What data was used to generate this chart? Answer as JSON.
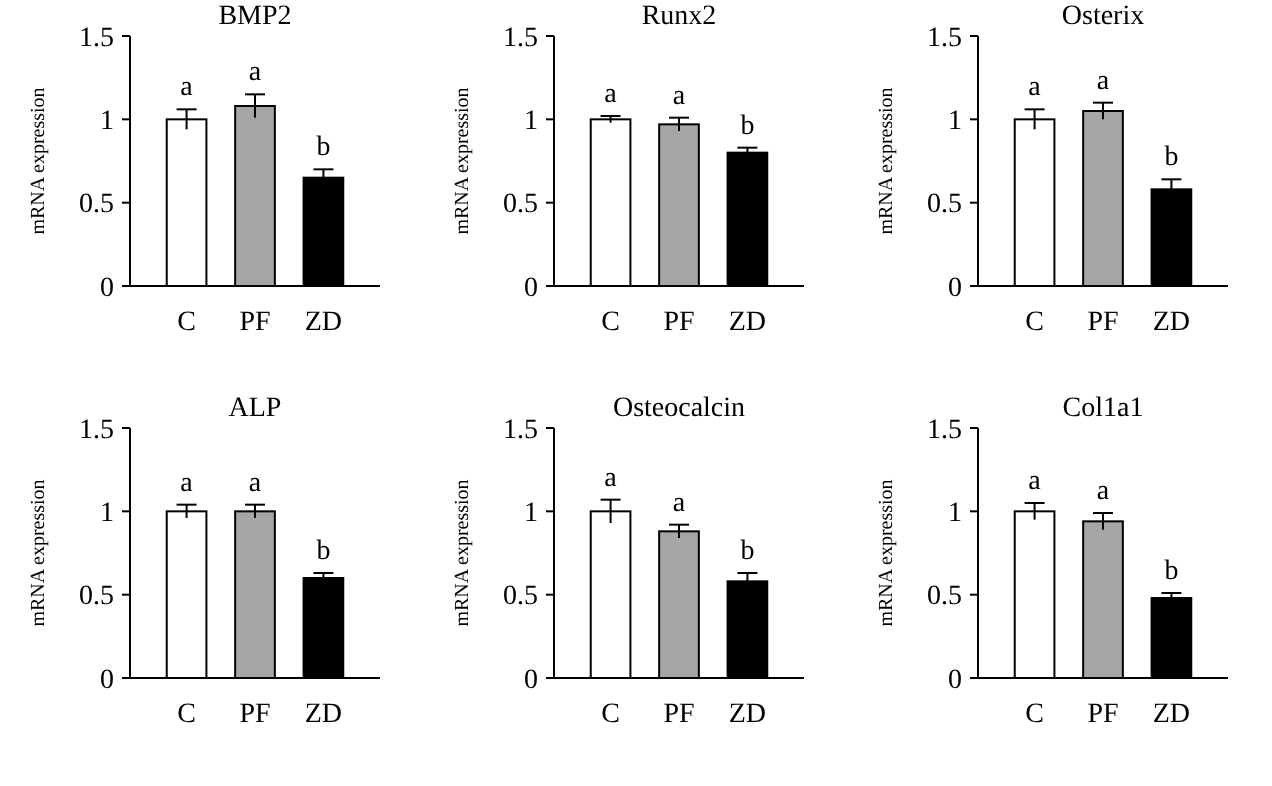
{
  "chart_data": [
    {
      "type": "bar",
      "title": "BMP2",
      "ylabel": "mRNA expression",
      "categories": [
        "C",
        "PF",
        "ZD"
      ],
      "values": [
        1.0,
        1.08,
        0.65
      ],
      "errors": [
        0.06,
        0.07,
        0.05
      ],
      "colors": [
        "#ffffff",
        "#a6a6a6",
        "#000000"
      ],
      "ylim": [
        0,
        1.5
      ],
      "yticks": [
        0,
        0.5,
        1,
        1.5
      ],
      "annotations": [
        {
          "text": "a",
          "x": "C",
          "y": 1.06
        },
        {
          "text": "a",
          "x": "PF",
          "y": 1.15
        },
        {
          "text": "b",
          "x": "ZD",
          "y": 0.7
        }
      ]
    },
    {
      "type": "bar",
      "title": "Runx2",
      "ylabel": "mRNA expression",
      "categories": [
        "C",
        "PF",
        "ZD"
      ],
      "values": [
        1.0,
        0.97,
        0.8
      ],
      "errors": [
        0.02,
        0.04,
        0.03
      ],
      "colors": [
        "#ffffff",
        "#a6a6a6",
        "#000000"
      ],
      "ylim": [
        0,
        1.5
      ],
      "yticks": [
        0,
        0.5,
        1,
        1.5
      ],
      "annotations": [
        {
          "text": "a",
          "x": "C",
          "y": 1.02
        },
        {
          "text": "a",
          "x": "PF",
          "y": 1.01
        },
        {
          "text": "b",
          "x": "ZD",
          "y": 0.83
        }
      ]
    },
    {
      "type": "bar",
      "title": "Osterix",
      "ylabel": "mRNA expression",
      "categories": [
        "C",
        "PF",
        "ZD"
      ],
      "values": [
        1.0,
        1.05,
        0.58
      ],
      "errors": [
        0.06,
        0.05,
        0.06
      ],
      "colors": [
        "#ffffff",
        "#a6a6a6",
        "#000000"
      ],
      "ylim": [
        0,
        1.5
      ],
      "yticks": [
        0,
        0.5,
        1,
        1.5
      ],
      "annotations": [
        {
          "text": "a",
          "x": "C",
          "y": 1.06
        },
        {
          "text": "a",
          "x": "PF",
          "y": 1.1
        },
        {
          "text": "b",
          "x": "ZD",
          "y": 0.64
        }
      ]
    },
    {
      "type": "bar",
      "title": "ALP",
      "ylabel": "mRNA expression",
      "categories": [
        "C",
        "PF",
        "ZD"
      ],
      "values": [
        1.0,
        1.0,
        0.6
      ],
      "errors": [
        0.04,
        0.04,
        0.03
      ],
      "colors": [
        "#ffffff",
        "#a6a6a6",
        "#000000"
      ],
      "ylim": [
        0,
        1.5
      ],
      "yticks": [
        0,
        0.5,
        1,
        1.5
      ],
      "annotations": [
        {
          "text": "a",
          "x": "C",
          "y": 1.04
        },
        {
          "text": "a",
          "x": "PF",
          "y": 1.04
        },
        {
          "text": "b",
          "x": "ZD",
          "y": 0.63
        }
      ]
    },
    {
      "type": "bar",
      "title": "Osteocalcin",
      "ylabel": "mRNA expression",
      "categories": [
        "C",
        "PF",
        "ZD"
      ],
      "values": [
        1.0,
        0.88,
        0.58
      ],
      "errors": [
        0.07,
        0.04,
        0.05
      ],
      "colors": [
        "#ffffff",
        "#a6a6a6",
        "#000000"
      ],
      "ylim": [
        0,
        1.5
      ],
      "yticks": [
        0,
        0.5,
        1,
        1.5
      ],
      "annotations": [
        {
          "text": "a",
          "x": "C",
          "y": 1.07
        },
        {
          "text": "a",
          "x": "PF",
          "y": 0.92
        },
        {
          "text": "b",
          "x": "ZD",
          "y": 0.63
        }
      ]
    },
    {
      "type": "bar",
      "title": "Col1a1",
      "ylabel": "mRNA expression",
      "categories": [
        "C",
        "PF",
        "ZD"
      ],
      "values": [
        1.0,
        0.94,
        0.48
      ],
      "errors": [
        0.05,
        0.05,
        0.03
      ],
      "colors": [
        "#ffffff",
        "#a6a6a6",
        "#000000"
      ],
      "ylim": [
        0,
        1.5
      ],
      "yticks": [
        0,
        0.5,
        1,
        1.5
      ],
      "annotations": [
        {
          "text": "a",
          "x": "C",
          "y": 1.05
        },
        {
          "text": "a",
          "x": "PF",
          "y": 0.99
        },
        {
          "text": "b",
          "x": "ZD",
          "y": 0.51
        }
      ]
    }
  ]
}
